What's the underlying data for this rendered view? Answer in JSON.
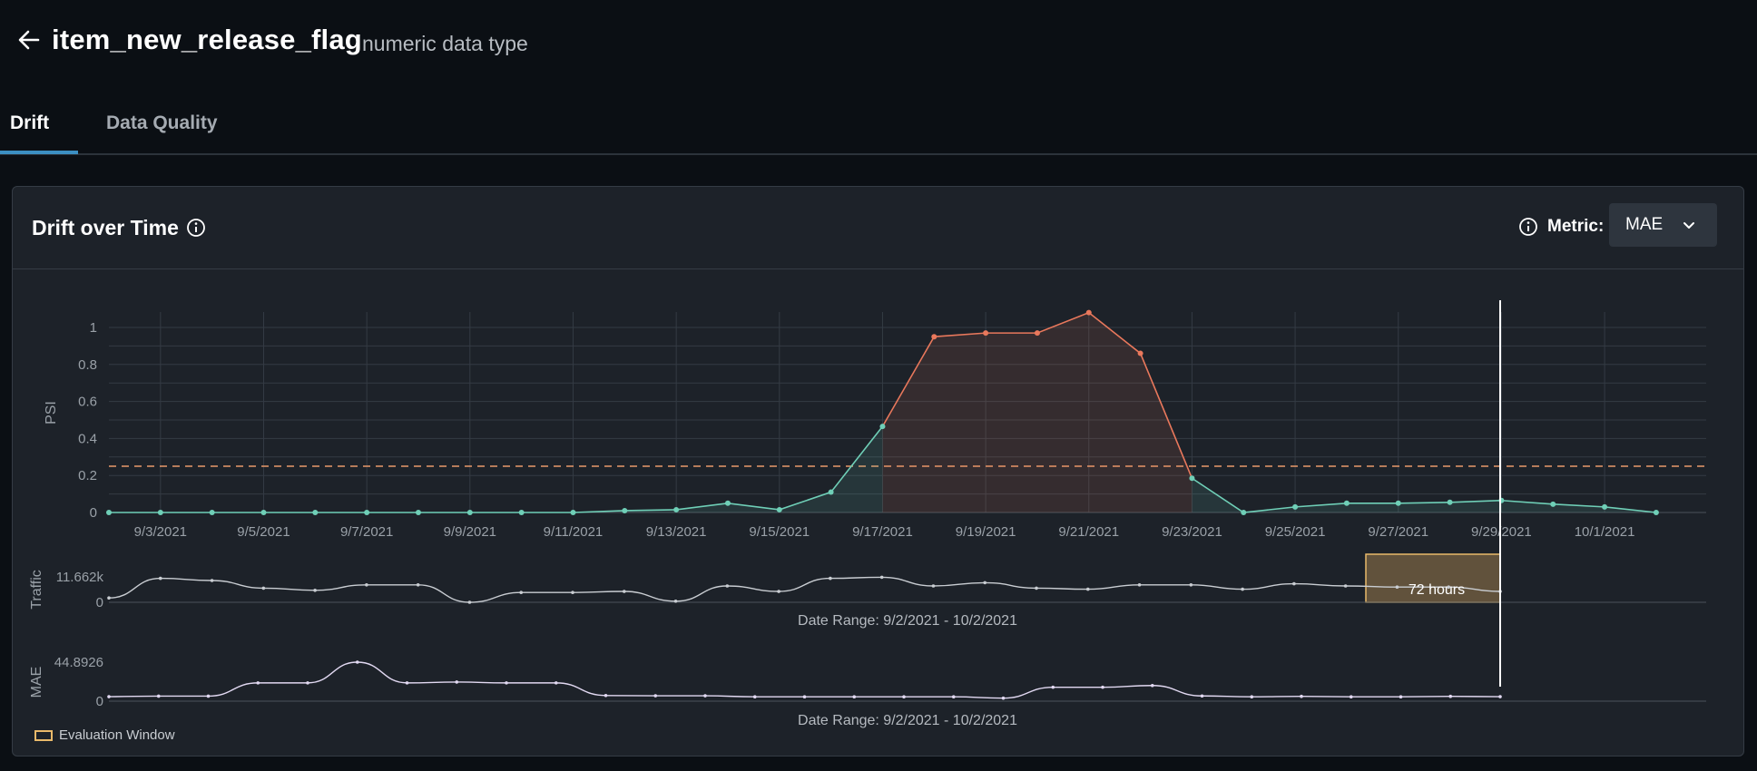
{
  "header": {
    "back_icon": "arrow-left-icon",
    "title": "item_new_release_flag",
    "subtitle": "numeric data type"
  },
  "tabs": [
    {
      "label": "Drift",
      "active": true
    },
    {
      "label": "Data Quality",
      "active": false
    }
  ],
  "card": {
    "title": "Drift over Time",
    "title_icon": "info-icon",
    "metric_icon": "info-icon",
    "metric_label": "Metric:",
    "metric_value": "MAE",
    "metric_chevron": "chevron-down-icon"
  },
  "legend": {
    "label": "Evaluation Window",
    "color": "#e9b96a"
  },
  "chart_data": [
    {
      "type": "line",
      "title": "",
      "xlabel": "",
      "ylabel": "PSI",
      "ylim": [
        0,
        1.1
      ],
      "yticks": [
        "0",
        "0.2",
        "0.4",
        "0.6",
        "0.8",
        "1"
      ],
      "xticks": [
        "9/3/2021",
        "9/5/2021",
        "9/7/2021",
        "9/9/2021",
        "9/11/2021",
        "9/13/2021",
        "9/15/2021",
        "9/17/2021",
        "9/19/2021",
        "9/21/2021",
        "9/23/2021",
        "9/25/2021",
        "9/27/2021",
        "9/29/2021",
        "10/1/2021"
      ],
      "x": [
        "9/2/2021",
        "9/3/2021",
        "9/4/2021",
        "9/5/2021",
        "9/6/2021",
        "9/7/2021",
        "9/8/2021",
        "9/9/2021",
        "9/10/2021",
        "9/11/2021",
        "9/12/2021",
        "9/13/2021",
        "9/14/2021",
        "9/15/2021",
        "9/16/2021",
        "9/17/2021",
        "9/18/2021",
        "9/19/2021",
        "9/20/2021",
        "9/21/2021",
        "9/22/2021",
        "9/23/2021",
        "9/24/2021",
        "9/25/2021",
        "9/26/2021",
        "9/27/2021",
        "9/28/2021",
        "9/29/2021",
        "9/30/2021",
        "10/1/2021",
        "10/2/2021"
      ],
      "values": [
        0,
        0,
        0,
        0,
        0,
        0,
        0,
        0,
        0,
        0,
        0.01,
        0.015,
        0.05,
        0.015,
        0.11,
        0.465,
        0.95,
        0.97,
        0.97,
        1.08,
        0.86,
        0.185,
        0,
        0.03,
        0.05,
        0.05,
        0.055,
        0.065,
        0.045,
        0.03,
        0
      ],
      "threshold": 0.25,
      "grid": true,
      "colors": {
        "normal": "#6fcfb7",
        "drift": "#e9785c",
        "threshold": "#e9996a"
      }
    },
    {
      "type": "area",
      "ylabel": "Traffic",
      "yticks": [
        "0",
        "11.662k"
      ],
      "ylim": [
        0,
        11662
      ],
      "values": [
        2000,
        11000,
        10000,
        6500,
        5500,
        8000,
        8000,
        0,
        4500,
        4500,
        5000,
        500,
        7500,
        5000,
        11000,
        11500,
        7500,
        9000,
        6500,
        6000,
        8000,
        8000,
        6000,
        8500,
        7500,
        7000,
        7000,
        5000
      ],
      "range_label": "Date Range: 9/2/2021 - 10/2/2021",
      "window_label": "72 hours",
      "color": "#c9cdd2"
    },
    {
      "type": "line",
      "ylabel": "MAE",
      "yticks": [
        "0",
        "44.8926"
      ],
      "ylim": [
        0,
        44.8926
      ],
      "values": [
        5.2,
        5.8,
        5.8,
        21,
        21,
        44.9,
        21,
        22,
        21,
        21,
        6.5,
        6.2,
        6.2,
        5,
        5,
        5,
        5,
        5,
        3.5,
        16,
        16,
        18,
        6,
        5,
        5.5,
        5,
        5,
        5.5,
        5.2
      ],
      "range_label": "Date Range: 9/2/2021 - 10/2/2021",
      "color": "#e2d9f2"
    }
  ]
}
